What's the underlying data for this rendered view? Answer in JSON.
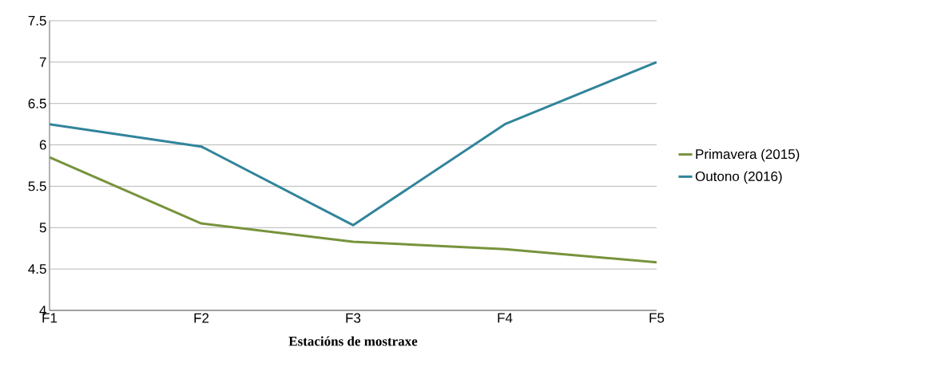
{
  "chart_data": {
    "type": "line",
    "xlabel": "**Estacións de mostraxe**",
    "categories": [
      "F1",
      "F2",
      "F3",
      "F4",
      "F5"
    ],
    "series": [
      {
        "name": "Primavera (2015)",
        "color": "#77933c",
        "values": [
          5.85,
          5.05,
          4.83,
          4.74,
          4.58
        ]
      },
      {
        "name": "Outono (2016)",
        "color": "#31849b",
        "values": [
          6.25,
          5.98,
          5.03,
          6.25,
          7.0
        ]
      }
    ],
    "ylim": [
      4,
      7.5
    ],
    "yticks": [
      4,
      4.5,
      5,
      5.5,
      6,
      6.5,
      7,
      7.5
    ],
    "grid": "y",
    "legend": "right",
    "marker": "none",
    "line_style": "solid"
  }
}
